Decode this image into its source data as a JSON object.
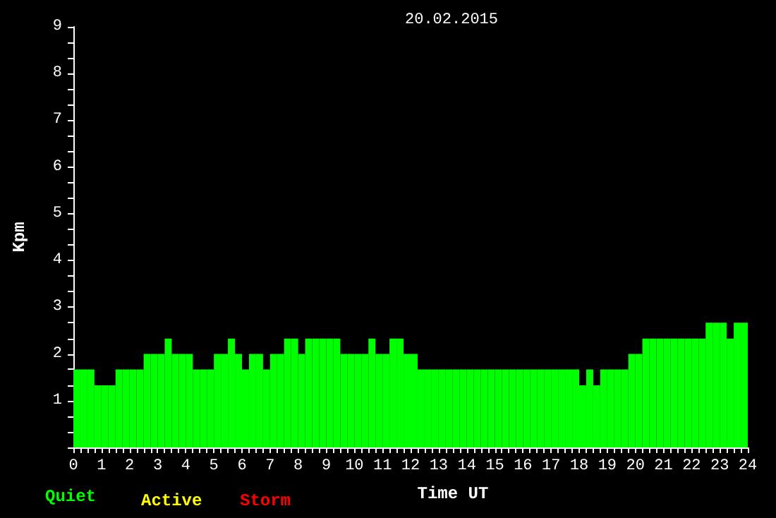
{
  "chart_data": {
    "type": "histogram",
    "title": "20.02.2015",
    "xlabel": "Time UT",
    "ylabel": "Kpm",
    "bins": [
      0,
      0.25,
      0.5,
      0.75,
      1,
      1.25,
      1.5,
      1.75,
      2,
      2.25,
      2.5,
      2.75,
      3,
      3.25,
      3.5,
      3.75,
      4,
      4.25,
      4.5,
      4.75,
      5,
      5.25,
      5.5,
      5.75,
      6,
      6.25,
      6.5,
      6.75,
      7,
      7.25,
      7.5,
      7.75,
      8,
      8.25,
      8.5,
      8.75,
      9,
      9.25,
      9.5,
      9.75,
      10,
      10.25,
      10.5,
      10.75,
      11,
      11.25,
      11.5,
      11.75,
      12,
      12.25,
      12.5,
      12.75,
      13,
      13.25,
      13.5,
      13.75,
      14,
      14.25,
      14.5,
      14.75,
      15,
      15.25,
      15.5,
      15.75,
      16,
      16.25,
      16.5,
      16.75,
      17,
      17.25,
      17.5,
      17.75,
      18,
      18.25,
      18.5,
      18.75,
      19,
      19.25,
      19.5,
      19.75,
      20,
      20.25,
      20.5,
      20.75,
      21,
      21.25,
      21.5,
      21.75,
      22,
      22.25,
      22.5,
      22.75,
      23,
      23.25,
      23.5,
      23.75,
      24
    ],
    "series": [
      {
        "name": "Quiet",
        "color": "#00ff00",
        "values": [
          1.67,
          1.67,
          1.67,
          1.33,
          1.33,
          1.33,
          1.67,
          1.67,
          1.67,
          1.67,
          2,
          2,
          2,
          2.33,
          2,
          2,
          2,
          1.67,
          1.67,
          1.67,
          2,
          2,
          2.33,
          2,
          1.67,
          2,
          2,
          1.67,
          2,
          2,
          2.33,
          2.33,
          2,
          2.33,
          2.33,
          2.33,
          2.33,
          2.33,
          2,
          2,
          2,
          2,
          2.33,
          2,
          2,
          2.33,
          2.33,
          2,
          2,
          1.67,
          1.67,
          1.67,
          1.67,
          1.67,
          1.67,
          1.67,
          1.67,
          1.67,
          1.67,
          1.67,
          1.67,
          1.67,
          1.67,
          1.67,
          1.67,
          1.67,
          1.67,
          1.67,
          1.67,
          1.67,
          1.67,
          1.67,
          1.33,
          1.67,
          1.33,
          1.67,
          1.67,
          1.67,
          1.67,
          2,
          2,
          2.33,
          2.33,
          2.33,
          2.33,
          2.33,
          2.33,
          2.33,
          2.33,
          2.33,
          2.67,
          2.67,
          2.67,
          2.33,
          2.67,
          2.67
        ]
      }
    ],
    "annotations": [
      "Active",
      "Storm"
    ],
    "xlim": [
      0,
      24
    ],
    "xticks": [
      0,
      {
        "value": 0.25,
        "label": null
      },
      {
        "value": 0.5,
        "label": null
      },
      {
        "value": 0.75,
        "label": null
      },
      1,
      {
        "value": 1.25,
        "label": null
      },
      {
        "value": 1.5,
        "label": null
      },
      {
        "value": 1.75,
        "label": null
      },
      2,
      {
        "value": 2.25,
        "label": null
      },
      {
        "value": 2.5,
        "label": null
      },
      {
        "value": 2.75,
        "label": null
      },
      3,
      {
        "value": 3.25,
        "label": null
      },
      {
        "value": 3.5,
        "label": null
      },
      {
        "value": 3.75,
        "label": null
      },
      4,
      {
        "value": 4.25,
        "label": null
      },
      {
        "value": 4.5,
        "label": null
      },
      {
        "value": 4.75,
        "label": null
      },
      5,
      {
        "value": 5.25,
        "label": null
      },
      {
        "value": 5.5,
        "label": null
      },
      {
        "value": 5.75,
        "label": null
      },
      6,
      {
        "value": 6.25,
        "label": null
      },
      {
        "value": 6.5,
        "label": null
      },
      {
        "value": 6.75,
        "label": null
      },
      7,
      {
        "value": 7.25,
        "label": null
      },
      {
        "value": 7.5,
        "label": null
      },
      {
        "value": 7.75,
        "label": null
      },
      8,
      {
        "value": 8.25,
        "label": null
      },
      {
        "value": 8.5,
        "label": null
      },
      {
        "value": 8.75,
        "label": null
      },
      9,
      {
        "value": 9.25,
        "label": null
      },
      {
        "value": 9.5,
        "label": null
      },
      {
        "value": 9.75,
        "label": null
      },
      10,
      {
        "value": 10.25,
        "label": null
      },
      {
        "value": 10.5,
        "label": null
      },
      {
        "value": 10.75,
        "label": null
      },
      11,
      {
        "value": 11.25,
        "label": null
      },
      {
        "value": 11.5,
        "label": null
      },
      {
        "value": 11.75,
        "label": null
      },
      12,
      {
        "value": 12.25,
        "label": null
      },
      {
        "value": 12.5,
        "label": null
      },
      {
        "value": 12.75,
        "label": null
      },
      13,
      {
        "value": 13.25,
        "label": null
      },
      {
        "value": 13.5,
        "label": null
      },
      {
        "value": 13.75,
        "label": null
      },
      14,
      {
        "value": 14.25,
        "label": null
      },
      {
        "value": 14.5,
        "label": null
      },
      {
        "value": 14.75,
        "label": null
      },
      15,
      {
        "value": 15.25,
        "label": null
      },
      {
        "value": 15.5,
        "label": null
      },
      {
        "value": 15.75,
        "label": null
      },
      16,
      {
        "value": 16.25,
        "label": null
      },
      {
        "value": 16.5,
        "label": null
      },
      {
        "value": 16.75,
        "label": null
      },
      17,
      {
        "value": 17.25,
        "label": null
      },
      {
        "value": 17.5,
        "label": null
      },
      {
        "value": 17.75,
        "label": null
      },
      18,
      {
        "value": 18.25,
        "label": null
      },
      {
        "value": 18.5,
        "label": null
      },
      {
        "value": 18.75,
        "label": null
      },
      19,
      {
        "value": 19.25,
        "label": null
      },
      {
        "value": 19.5,
        "label": null
      },
      {
        "value": 19.75,
        "label": null
      },
      20,
      {
        "value": 20.25,
        "label": null
      },
      {
        "value": 20.5,
        "label": null
      },
      {
        "value": 20.75,
        "label": null
      },
      21,
      {
        "value": 21.25,
        "label": null
      },
      {
        "value": 21.5,
        "label": null
      },
      {
        "value": 21.75,
        "label": null
      },
      22,
      {
        "value": 22.25,
        "label": null
      },
      {
        "value": 22.5,
        "label": null
      },
      {
        "value": 22.75,
        "label": null
      },
      23,
      {
        "value": 23.25,
        "label": null
      },
      {
        "value": 23.5,
        "label": null
      },
      {
        "value": 23.75,
        "label": null
      },
      24
    ],
    "ylim": [
      0,
      9
    ],
    "yticks": [
      {
        "value": 0,
        "label": null
      },
      {
        "value": 0.33,
        "label": null
      },
      {
        "value": 0.67,
        "label": null
      },
      1,
      {
        "value": 1.33,
        "label": null
      },
      {
        "value": 1.67,
        "label": null
      },
      2,
      {
        "value": 2.33,
        "label": null
      },
      {
        "value": 2.67,
        "label": null
      },
      3,
      {
        "value": 3.33,
        "label": null
      },
      {
        "value": 3.67,
        "label": null
      },
      4,
      {
        "value": 4.33,
        "label": null
      },
      {
        "value": 4.67,
        "label": null
      },
      5,
      {
        "value": 5.33,
        "label": null
      },
      {
        "value": 5.67,
        "label": null
      },
      6,
      {
        "value": 6.33,
        "label": null
      },
      {
        "value": 6.67,
        "label": null
      },
      7,
      {
        "value": 7.33,
        "label": null
      },
      {
        "value": 7.67,
        "label": null
      },
      8,
      {
        "value": 8.33,
        "label": null
      },
      {
        "value": 8.67,
        "label": null
      },
      9
    ],
    "grid": false,
    "legend": "bottom left"
  }
}
